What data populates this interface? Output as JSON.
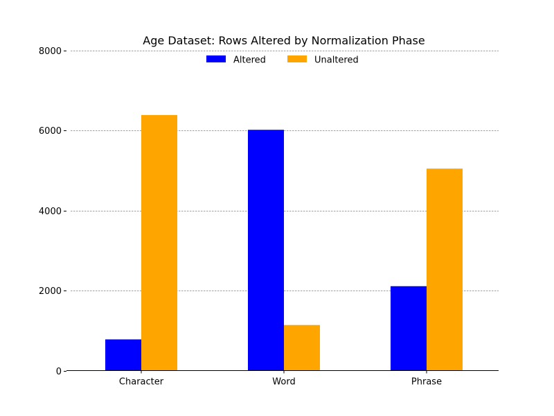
{
  "chart_data": {
    "type": "bar",
    "title": "Age Dataset: Rows Altered by Normalization Phase",
    "xlabel": "",
    "ylabel": "",
    "categories": [
      "Character",
      "Word",
      "Phrase"
    ],
    "series": [
      {
        "name": "Altered",
        "values": [
          780,
          6020,
          2110
        ],
        "color": "#0000ff"
      },
      {
        "name": "Unaltered",
        "values": [
          6390,
          1140,
          5050
        ],
        "color": "#ffa500"
      }
    ],
    "ylim": [
      0,
      8000
    ],
    "yticks": [
      0,
      2000,
      4000,
      6000,
      8000
    ],
    "grid": "horizontal dashed",
    "legend": "top-center"
  }
}
